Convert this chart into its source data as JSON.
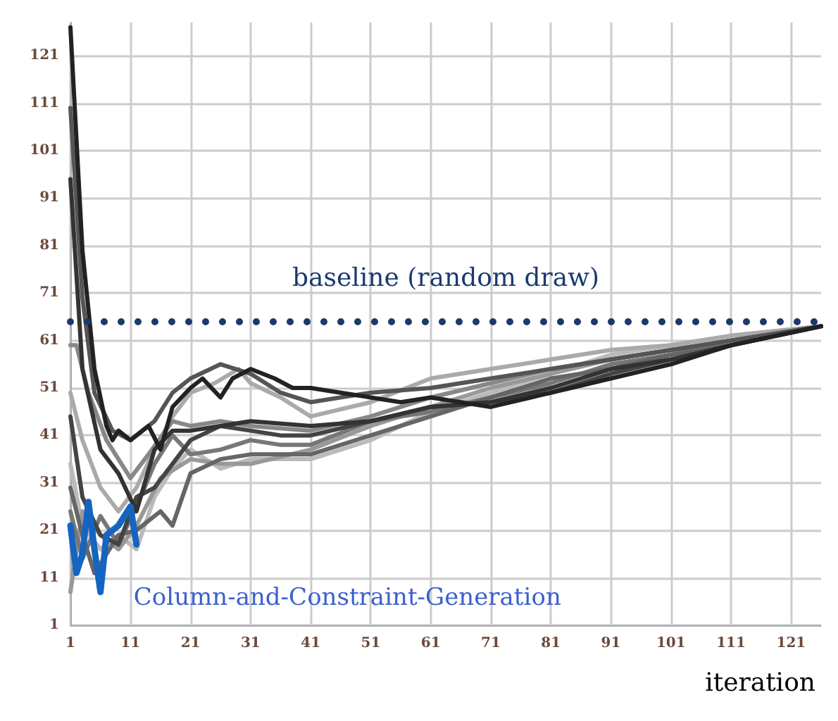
{
  "chart_data": {
    "type": "line",
    "xlabel": "iteration",
    "xlim": [
      1,
      126
    ],
    "ylim": [
      1,
      128
    ],
    "xticks": [
      1,
      11,
      21,
      31,
      41,
      51,
      61,
      71,
      81,
      91,
      101,
      111,
      121
    ],
    "yticks": [
      1,
      11,
      21,
      31,
      41,
      51,
      61,
      71,
      81,
      91,
      101,
      111,
      121
    ],
    "grid": true,
    "legend": false,
    "marker": "none",
    "line_style": "solid",
    "ref_lines": [
      {
        "axis": "y",
        "value": 65,
        "label": "baseline (random draw)",
        "color": "#1a3a6e",
        "line_style": "dotted"
      }
    ],
    "series": [
      {
        "color": "#bbbbbb",
        "x": [
          1,
          3,
          6,
          9,
          12,
          15,
          18,
          21,
          26,
          31,
          41,
          51,
          61,
          71,
          81,
          91,
          101,
          111,
          126
        ],
        "values": [
          35,
          22,
          17,
          20,
          17,
          28,
          34,
          38,
          34,
          36,
          36,
          40,
          46,
          50,
          54,
          58,
          60,
          62,
          64
        ]
      },
      {
        "color": "#aaaaaa",
        "x": [
          1,
          3,
          6,
          9,
          12,
          15,
          18,
          21,
          25,
          29,
          31,
          36,
          41,
          51,
          61,
          71,
          81,
          91,
          101,
          111,
          126
        ],
        "values": [
          50,
          40,
          30,
          25,
          30,
          38,
          45,
          50,
          52,
          55,
          52,
          49,
          45,
          48,
          53,
          55,
          57,
          59,
          60,
          62,
          64
        ]
      },
      {
        "color": "#999999",
        "x": [
          1,
          3,
          6,
          9,
          12,
          16,
          21,
          26,
          31,
          41,
          51,
          61,
          71,
          81,
          91,
          101,
          111,
          126
        ],
        "values": [
          8,
          25,
          20,
          17,
          22,
          32,
          36,
          35,
          35,
          38,
          43,
          47,
          51,
          54,
          57,
          59,
          61,
          64
        ]
      },
      {
        "color": "#888888",
        "x": [
          1,
          2,
          4,
          7,
          11,
          14,
          18,
          21,
          26,
          31,
          41,
          51,
          61,
          71,
          81,
          91,
          101,
          111,
          126
        ],
        "values": [
          60,
          60,
          50,
          40,
          32,
          37,
          44,
          43,
          44,
          43,
          42,
          45,
          49,
          52,
          55,
          57,
          59,
          61,
          64
        ]
      },
      {
        "color": "#777777",
        "x": [
          1,
          3,
          6,
          9,
          12,
          15,
          18,
          21,
          26,
          31,
          36,
          41,
          51,
          61,
          71,
          81,
          91,
          101,
          111,
          126
        ],
        "values": [
          25,
          15,
          24,
          18,
          26,
          35,
          41,
          37,
          38,
          40,
          39,
          39,
          44,
          46,
          49,
          52,
          56,
          58,
          61,
          64
        ]
      },
      {
        "color": "#666666",
        "x": [
          1,
          3,
          5,
          9,
          12,
          16,
          18,
          21,
          26,
          31,
          41,
          51,
          61,
          71,
          81,
          91,
          101,
          111,
          126
        ],
        "values": [
          30,
          20,
          12,
          20,
          21,
          25,
          22,
          33,
          36,
          37,
          37,
          41,
          45,
          49,
          53,
          55,
          58,
          60,
          64
        ]
      },
      {
        "color": "#555555",
        "x": [
          1,
          3,
          5,
          8,
          11,
          15,
          18,
          21,
          26,
          31,
          36,
          41,
          51,
          61,
          71,
          81,
          91,
          101,
          111,
          126
        ],
        "values": [
          110,
          70,
          50,
          42,
          40,
          44,
          50,
          53,
          56,
          54,
          50,
          48,
          50,
          51,
          53,
          55,
          57,
          59,
          61,
          64
        ]
      },
      {
        "color": "#444444",
        "x": [
          1,
          3,
          6,
          9,
          12,
          15,
          18,
          21,
          26,
          31,
          36,
          41,
          51,
          61,
          71,
          81,
          91,
          101,
          111,
          126
        ],
        "values": [
          45,
          28,
          20,
          18,
          28,
          30,
          35,
          40,
          43,
          42,
          41,
          41,
          44,
          47,
          48,
          50,
          54,
          57,
          60,
          64
        ]
      },
      {
        "color": "#333333",
        "x": [
          1,
          3,
          6,
          9,
          12,
          15,
          18,
          21,
          26,
          31,
          41,
          51,
          61,
          71,
          81,
          91,
          101,
          111,
          126
        ],
        "values": [
          95,
          55,
          38,
          33,
          25,
          38,
          42,
          42,
          43,
          44,
          43,
          44,
          47,
          48,
          51,
          55,
          57,
          60,
          64
        ]
      },
      {
        "color": "#222222",
        "x": [
          1,
          3,
          5,
          7,
          8,
          9,
          11,
          14,
          16,
          18,
          21,
          23,
          26,
          28,
          31,
          35,
          38,
          41,
          46,
          51,
          56,
          61,
          71,
          81,
          91,
          101,
          111,
          126
        ],
        "values": [
          127,
          80,
          55,
          43,
          40,
          42,
          40,
          43,
          38,
          47,
          51,
          53,
          49,
          53,
          55,
          53,
          51,
          51,
          50,
          49,
          48,
          49,
          47,
          50,
          53,
          56,
          60,
          64
        ]
      },
      {
        "name": "Column-and-Constraint-Generation",
        "color": "#1565c0",
        "x": [
          1,
          2,
          3,
          4,
          5,
          6,
          7,
          8,
          9,
          10,
          11,
          12
        ],
        "values": [
          22,
          12,
          16,
          27,
          17,
          8,
          20,
          21,
          22,
          24,
          26,
          18
        ]
      }
    ]
  }
}
